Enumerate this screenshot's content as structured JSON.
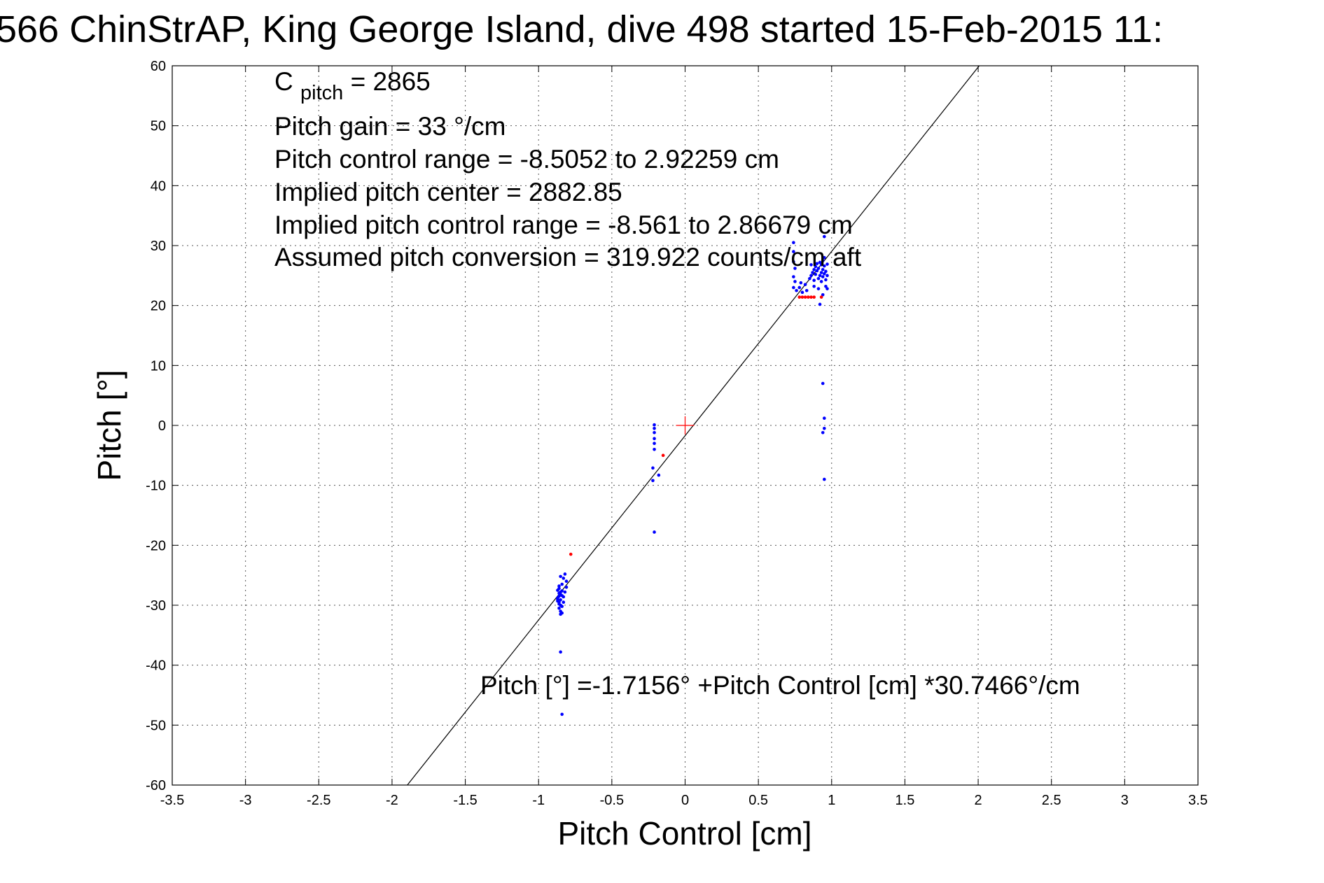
{
  "chart_data": {
    "type": "scatter",
    "title": "566 ChinStrAP, King George Island, dive 498 started 15-Feb-2015 11:",
    "xlabel": "Pitch Control [cm]",
    "ylabel": "Pitch [°]",
    "xlim": [
      -3.5,
      3.5
    ],
    "ylim": [
      -60,
      60
    ],
    "xticks": [
      -3.5,
      -3,
      -2.5,
      -2,
      -1.5,
      -1,
      -0.5,
      0,
      0.5,
      1,
      1.5,
      2,
      2.5,
      3,
      3.5
    ],
    "xtick_labels": [
      "-3.5",
      "-3",
      "-2.5",
      "-2",
      "-1.5",
      "-1",
      "-0.5",
      "0",
      "0.5",
      "1",
      "1.5",
      "2",
      "2.5",
      "3",
      "3.5"
    ],
    "yticks": [
      60,
      50,
      40,
      30,
      20,
      10,
      0,
      -10,
      -20,
      -30,
      -40,
      -50,
      -60
    ],
    "ytick_labels": [
      "60",
      "50",
      "40",
      "30",
      "20",
      "10",
      "0",
      "-10",
      "-20",
      "-30",
      "-40",
      "-50",
      "-60"
    ],
    "grid": true,
    "annotations": {
      "cpitch_main": "C",
      "cpitch_sub": "pitch",
      "cpitch_value": " = 2865",
      "line2": "Pitch gain = 33 °/cm",
      "line3": "Pitch control range = -8.5052 to 2.92259 cm",
      "line4": "Implied pitch center = 2882.85",
      "line5": "Implied pitch control range = -8.561 to 2.86679 cm",
      "line6": "Assumed pitch conversion = 319.922 counts/cm aft",
      "fit_label": "Pitch [°] =-1.7156° +Pitch Control [cm] *30.7466°/cm"
    },
    "fit_line": {
      "intercept": -1.7156,
      "slope": 30.7466,
      "color": "#000000"
    },
    "center_marker": {
      "x": 0,
      "y": 0,
      "color": "#ff0000"
    },
    "series": [
      {
        "color": "#0000ff",
        "points": [
          [
            -0.87,
            -27.5
          ],
          [
            -0.86,
            -28
          ],
          [
            -0.86,
            -28.5
          ],
          [
            -0.85,
            -28.2
          ],
          [
            -0.87,
            -29
          ],
          [
            -0.86,
            -29.5
          ],
          [
            -0.85,
            -30
          ],
          [
            -0.86,
            -30.5
          ],
          [
            -0.87,
            -28.8
          ],
          [
            -0.85,
            -27.8
          ],
          [
            -0.86,
            -29.8
          ],
          [
            -0.84,
            -28.4
          ],
          [
            -0.85,
            -31
          ],
          [
            -0.85,
            -31.5
          ],
          [
            -0.84,
            -30.2
          ],
          [
            -0.86,
            -27.2
          ],
          [
            -0.87,
            -29.3
          ],
          [
            -0.85,
            -29.1
          ],
          [
            -0.83,
            -28.6
          ],
          [
            -0.84,
            -27.6
          ],
          [
            -0.84,
            -26.5
          ],
          [
            -0.83,
            -25.5
          ],
          [
            -0.85,
            -25.2
          ],
          [
            -0.82,
            -24.8
          ],
          [
            -0.81,
            -26
          ],
          [
            -0.81,
            -27
          ],
          [
            -0.82,
            -27.8
          ],
          [
            -0.83,
            -29.5
          ],
          [
            -0.86,
            -26.8
          ],
          [
            -0.84,
            -31.3
          ],
          [
            -0.85,
            -37.8
          ],
          [
            -0.84,
            -48.2
          ],
          [
            -0.21,
            0.1
          ],
          [
            -0.21,
            -0.5
          ],
          [
            -0.21,
            -1.2
          ],
          [
            -0.21,
            -2.2
          ],
          [
            -0.21,
            -3
          ],
          [
            -0.21,
            -4
          ],
          [
            -0.22,
            -7.1
          ],
          [
            -0.22,
            -9.2
          ],
          [
            -0.18,
            -8.3
          ],
          [
            -0.21,
            -17.8
          ],
          [
            0.74,
            30.5
          ],
          [
            0.74,
            29
          ],
          [
            0.74,
            27.3
          ],
          [
            0.75,
            26.2
          ],
          [
            0.74,
            24.8
          ],
          [
            0.75,
            24
          ],
          [
            0.74,
            23
          ],
          [
            0.76,
            22.5
          ],
          [
            0.78,
            23
          ],
          [
            0.8,
            22.2
          ],
          [
            0.79,
            23.8
          ],
          [
            0.82,
            23.5
          ],
          [
            0.83,
            22.5
          ],
          [
            0.85,
            24.5
          ],
          [
            0.86,
            25
          ],
          [
            0.87,
            25.5
          ],
          [
            0.88,
            26
          ],
          [
            0.88,
            24.2
          ],
          [
            0.89,
            25.2
          ],
          [
            0.89,
            26.5
          ],
          [
            0.9,
            27
          ],
          [
            0.9,
            25.8
          ],
          [
            0.91,
            24.5
          ],
          [
            0.91,
            26.2
          ],
          [
            0.92,
            25
          ],
          [
            0.92,
            27.2
          ],
          [
            0.93,
            26.8
          ],
          [
            0.93,
            25.5
          ],
          [
            0.93,
            24
          ],
          [
            0.94,
            27.5
          ],
          [
            0.94,
            26
          ],
          [
            0.94,
            24.8
          ],
          [
            0.95,
            25.3
          ],
          [
            0.95,
            26.6
          ],
          [
            0.95,
            28
          ],
          [
            0.96,
            25.7
          ],
          [
            0.96,
            24.3
          ],
          [
            0.96,
            23.2
          ],
          [
            0.97,
            25
          ],
          [
            0.97,
            26.9
          ],
          [
            0.97,
            22.8
          ],
          [
            0.91,
            22.8
          ],
          [
            0.88,
            23.2
          ],
          [
            0.86,
            26.8
          ],
          [
            0.95,
            31.5
          ],
          [
            0.94,
            21.8
          ],
          [
            0.92,
            20.2
          ],
          [
            0.94,
            7
          ],
          [
            0.95,
            1.2
          ],
          [
            0.95,
            -0.5
          ],
          [
            0.94,
            -1.2
          ],
          [
            0.95,
            -9
          ]
        ]
      },
      {
        "color": "#ff0000",
        "points": [
          [
            0.78,
            21.4
          ],
          [
            0.8,
            21.4
          ],
          [
            0.82,
            21.4
          ],
          [
            0.84,
            21.4
          ],
          [
            0.86,
            21.4
          ],
          [
            0.88,
            21.4
          ],
          [
            0.93,
            21.4
          ],
          [
            -0.15,
            -5
          ],
          [
            -0.78,
            -21.5
          ]
        ]
      }
    ]
  }
}
